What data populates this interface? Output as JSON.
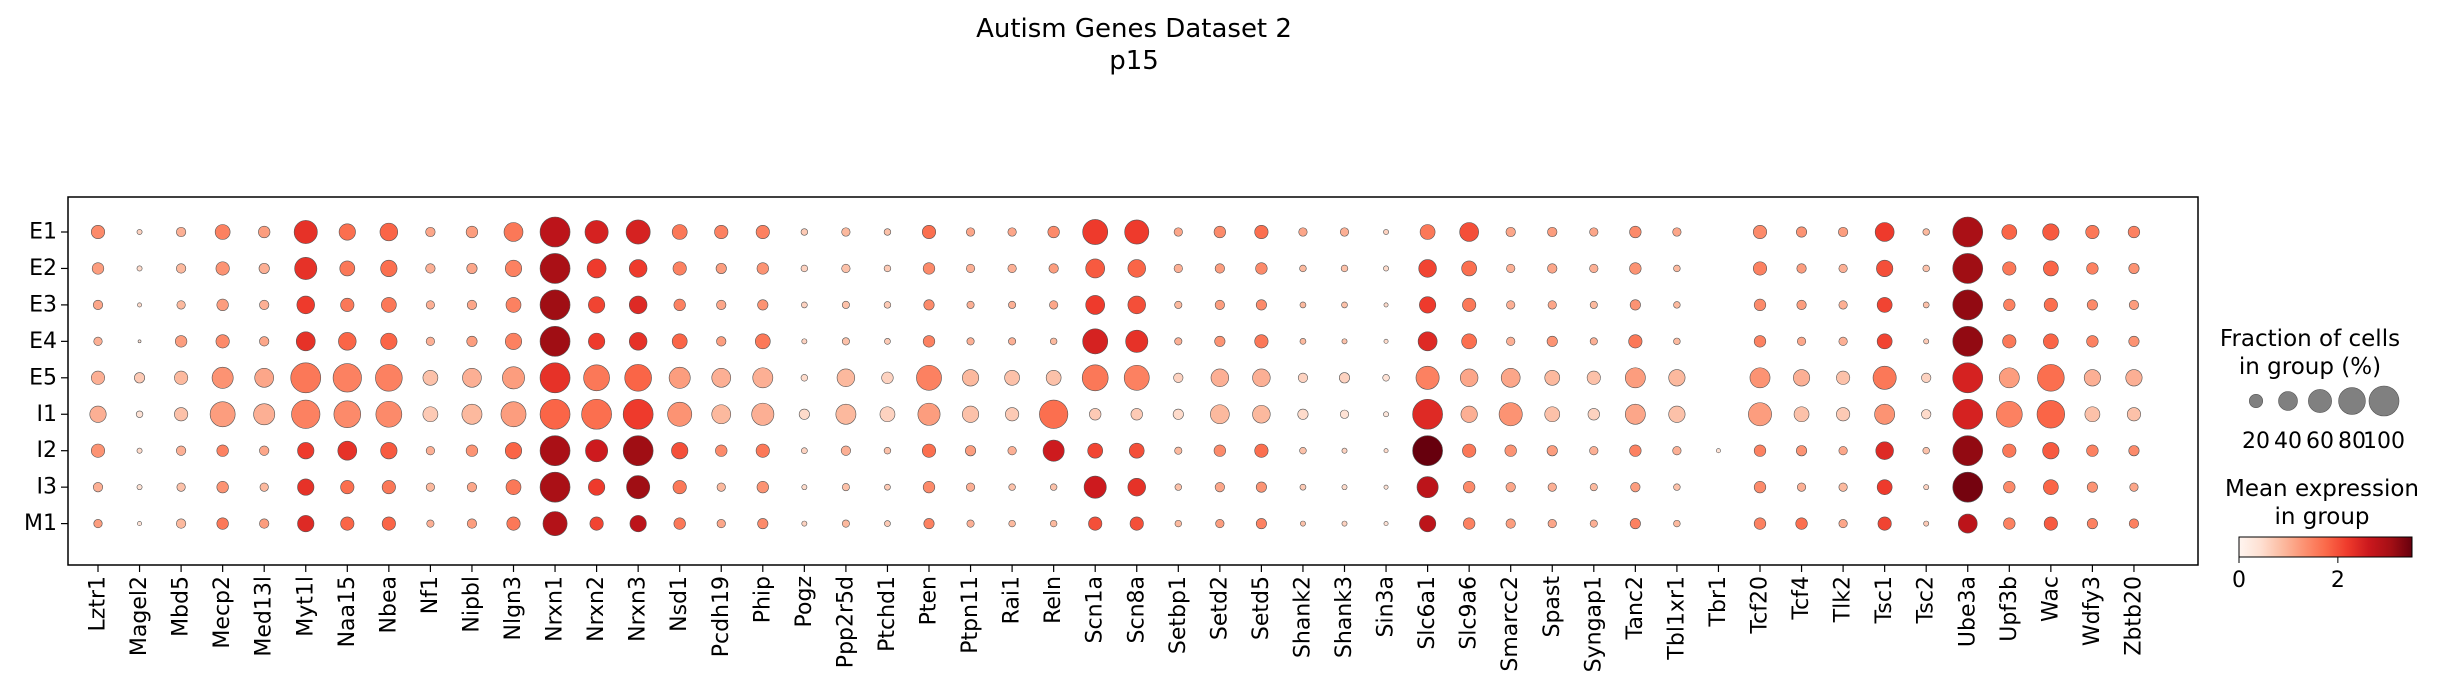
{
  "chart_data": {
    "type": "dotplot",
    "title": "Autism Genes Dataset 2",
    "subtitle": "p15",
    "xlabel": "",
    "ylabel": "",
    "genes": [
      "Lztr1",
      "Magel2",
      "Mbd5",
      "Mecp2",
      "Med13l",
      "Myt1l",
      "Naa15",
      "Nbea",
      "Nf1",
      "Nipbl",
      "Nlgn3",
      "Nrxn1",
      "Nrxn2",
      "Nrxn3",
      "Nsd1",
      "Pcdh19",
      "Phip",
      "Pogz",
      "Ppp2r5d",
      "Ptchd1",
      "Pten",
      "Ptpn11",
      "Rai1",
      "Reln",
      "Scn1a",
      "Scn8a",
      "Setbp1",
      "Setd2",
      "Setd5",
      "Shank2",
      "Shank3",
      "Sin3a",
      "Slc6a1",
      "Slc9a6",
      "Smarcc2",
      "Spast",
      "Syngap1",
      "Tanc2",
      "Tbl1xr1",
      "Tbr1",
      "Tcf20",
      "Tcf4",
      "Tlk2",
      "Tsc1",
      "Tsc2",
      "Ube3a",
      "Upf3b",
      "Wac",
      "Wdfy3",
      "Zbtb20"
    ],
    "groups": [
      "E1",
      "E2",
      "E3",
      "E4",
      "E5",
      "I1",
      "I2",
      "I3",
      "M1"
    ],
    "fraction_pct": [
      [
        20,
        3,
        10,
        25,
        15,
        60,
        30,
        35,
        10,
        15,
        40,
        100,
        60,
        65,
        25,
        20,
        20,
        5,
        8,
        5,
        20,
        8,
        8,
        15,
        70,
        65,
        8,
        15,
        20,
        8,
        8,
        3,
        25,
        40,
        10,
        10,
        8,
        15,
        8,
        0,
        20,
        12,
        10,
        40,
        5,
        100,
        25,
        30,
        20,
        15
      ],
      [
        15,
        3,
        10,
        20,
        12,
        55,
        25,
        30,
        10,
        12,
        30,
        100,
        40,
        35,
        20,
        12,
        15,
        5,
        8,
        5,
        15,
        8,
        8,
        10,
        40,
        35,
        8,
        10,
        15,
        5,
        5,
        3,
        35,
        25,
        8,
        10,
        8,
        15,
        5,
        0,
        20,
        10,
        8,
        30,
        5,
        100,
        20,
        25,
        15,
        12
      ],
      [
        10,
        2,
        8,
        15,
        10,
        35,
        20,
        25,
        8,
        10,
        25,
        100,
        30,
        35,
        15,
        10,
        12,
        4,
        6,
        5,
        12,
        6,
        6,
        8,
        40,
        35,
        6,
        10,
        12,
        4,
        4,
        2,
        30,
        20,
        8,
        8,
        6,
        12,
        5,
        0,
        15,
        10,
        8,
        25,
        4,
        100,
        15,
        20,
        12,
        10
      ],
      [
        8,
        1,
        15,
        20,
        10,
        40,
        35,
        30,
        8,
        12,
        30,
        100,
        30,
        35,
        25,
        10,
        25,
        3,
        6,
        4,
        15,
        6,
        6,
        5,
        70,
        55,
        6,
        12,
        20,
        4,
        3,
        2,
        40,
        25,
        8,
        12,
        6,
        20,
        5,
        0,
        15,
        8,
        8,
        25,
        3,
        100,
        20,
        25,
        15,
        12
      ],
      [
        20,
        12,
        20,
        50,
        40,
        100,
        90,
        80,
        25,
        40,
        55,
        100,
        75,
        80,
        50,
        40,
        45,
        5,
        35,
        15,
        70,
        30,
        25,
        25,
        75,
        70,
        10,
        35,
        35,
        10,
        12,
        5,
        60,
        35,
        40,
        25,
        20,
        45,
        30,
        0,
        45,
        30,
        20,
        60,
        10,
        100,
        45,
        80,
        30,
        30
      ],
      [
        30,
        5,
        20,
        70,
        50,
        90,
        80,
        75,
        25,
        45,
        70,
        100,
        100,
        100,
        65,
        40,
        55,
        12,
        45,
        25,
        55,
        30,
        20,
        90,
        15,
        15,
        12,
        40,
        35,
        12,
        8,
        3,
        100,
        30,
        60,
        25,
        15,
        45,
        30,
        0,
        60,
        25,
        20,
        45,
        10,
        100,
        75,
        85,
        25,
        20
      ],
      [
        20,
        3,
        10,
        15,
        10,
        30,
        40,
        30,
        8,
        15,
        30,
        100,
        55,
        100,
        30,
        15,
        20,
        4,
        10,
        5,
        20,
        12,
        8,
        50,
        25,
        25,
        6,
        15,
        20,
        5,
        3,
        2,
        100,
        20,
        15,
        12,
        8,
        15,
        8,
        2,
        15,
        12,
        8,
        35,
        5,
        100,
        20,
        30,
        15,
        12
      ],
      [
        10,
        3,
        8,
        15,
        8,
        30,
        20,
        20,
        8,
        10,
        25,
        100,
        30,
        60,
        20,
        8,
        15,
        3,
        6,
        4,
        15,
        8,
        5,
        5,
        55,
        35,
        5,
        10,
        12,
        4,
        3,
        2,
        50,
        15,
        10,
        8,
        6,
        10,
        5,
        0,
        15,
        8,
        8,
        25,
        3,
        100,
        15,
        25,
        12,
        8
      ],
      [
        8,
        2,
        10,
        15,
        10,
        30,
        20,
        20,
        6,
        10,
        20,
        65,
        20,
        30,
        15,
        8,
        12,
        3,
        6,
        4,
        12,
        6,
        5,
        5,
        20,
        20,
        5,
        8,
        12,
        3,
        3,
        2,
        30,
        15,
        10,
        8,
        6,
        12,
        5,
        0,
        15,
        15,
        8,
        20,
        3,
        40,
        15,
        20,
        12,
        10
      ]
    ],
    "mean_expression": [
      [
        1.4,
        0.6,
        1.0,
        1.5,
        1.2,
        2.3,
        1.7,
        1.8,
        1.1,
        1.2,
        1.6,
        2.8,
        2.5,
        2.5,
        1.6,
        1.5,
        1.5,
        0.7,
        0.9,
        0.8,
        1.7,
        1.1,
        1.1,
        1.4,
        2.2,
        2.2,
        1.1,
        1.4,
        1.7,
        1.1,
        1.0,
        0.6,
        1.6,
        2.0,
        1.1,
        1.2,
        1.1,
        1.4,
        1.1,
        0,
        1.4,
        1.3,
        1.2,
        2.2,
        0.9,
        3.0,
        1.8,
        1.9,
        1.6,
        1.5
      ],
      [
        1.2,
        0.5,
        0.9,
        1.3,
        1.0,
        2.3,
        1.6,
        1.7,
        1.0,
        1.1,
        1.5,
        3.0,
        2.2,
        2.2,
        1.5,
        1.2,
        1.3,
        0.6,
        0.8,
        0.7,
        1.4,
        1.0,
        1.0,
        1.2,
        1.9,
        1.8,
        1.0,
        1.2,
        1.4,
        0.9,
        0.8,
        0.5,
        2.1,
        1.7,
        1.0,
        1.1,
        1.0,
        1.3,
        0.9,
        0,
        1.5,
        1.2,
        1.0,
        2.0,
        0.8,
        3.1,
        1.6,
        1.8,
        1.5,
        1.3
      ],
      [
        1.1,
        0.5,
        0.9,
        1.2,
        1.0,
        2.2,
        1.6,
        1.6,
        1.0,
        1.1,
        1.5,
        3.1,
        2.1,
        2.4,
        1.5,
        1.1,
        1.3,
        0.6,
        0.8,
        0.7,
        1.4,
        1.0,
        1.0,
        1.1,
        2.2,
        2.0,
        0.9,
        1.2,
        1.4,
        0.9,
        0.8,
        0.5,
        2.2,
        1.6,
        1.0,
        1.1,
        0.9,
        1.3,
        0.9,
        0,
        1.4,
        1.2,
        1.0,
        2.1,
        0.8,
        3.2,
        1.5,
        1.7,
        1.4,
        1.2
      ],
      [
        1.0,
        0.4,
        1.2,
        1.4,
        1.1,
        2.3,
        1.8,
        1.8,
        1.0,
        1.2,
        1.5,
        3.1,
        2.2,
        2.3,
        1.8,
        1.2,
        1.6,
        0.6,
        0.8,
        0.7,
        1.5,
        1.0,
        1.0,
        0.9,
        2.5,
        2.3,
        1.0,
        1.3,
        1.6,
        0.9,
        0.8,
        0.5,
        2.4,
        1.7,
        1.0,
        1.3,
        1.0,
        1.6,
        0.9,
        0,
        1.5,
        1.1,
        1.0,
        2.1,
        0.7,
        3.2,
        1.6,
        1.8,
        1.5,
        1.3
      ],
      [
        1.0,
        0.7,
        0.9,
        1.3,
        1.1,
        1.6,
        1.5,
        1.5,
        0.8,
        1.0,
        1.2,
        2.3,
        1.6,
        1.8,
        1.2,
        1.0,
        1.0,
        0.5,
        0.9,
        0.6,
        1.5,
        0.9,
        0.8,
        0.8,
        1.6,
        1.5,
        0.6,
        1.0,
        1.0,
        0.6,
        0.6,
        0.4,
        1.5,
        1.1,
        1.1,
        0.9,
        0.8,
        1.2,
        0.9,
        0,
        1.3,
        1.0,
        0.8,
        1.6,
        0.6,
        2.5,
        1.2,
        1.7,
        1.0,
        1.0
      ],
      [
        1.0,
        0.4,
        0.8,
        1.2,
        1.0,
        1.5,
        1.4,
        1.4,
        0.7,
        0.9,
        1.2,
        1.8,
        1.7,
        2.2,
        1.3,
        0.9,
        1.0,
        0.5,
        0.9,
        0.6,
        1.2,
        0.8,
        0.7,
        1.7,
        0.7,
        0.7,
        0.5,
        0.9,
        0.9,
        0.5,
        0.4,
        0.3,
        2.4,
        1.0,
        1.3,
        0.8,
        0.6,
        1.1,
        0.8,
        0,
        1.2,
        0.8,
        0.7,
        1.3,
        0.5,
        2.5,
        1.5,
        1.8,
        0.8,
        0.8
      ],
      [
        1.3,
        0.5,
        1.0,
        1.5,
        1.1,
        2.2,
        2.3,
        1.9,
        1.0,
        1.3,
        1.8,
        3.0,
        2.6,
        3.1,
        2.0,
        1.4,
        1.6,
        0.6,
        1.0,
        0.8,
        1.7,
        1.2,
        1.0,
        2.6,
        2.1,
        2.0,
        0.9,
        1.4,
        1.7,
        0.8,
        0.6,
        0.5,
        3.5,
        1.6,
        1.3,
        1.2,
        1.0,
        1.5,
        1.0,
        0.4,
        1.5,
        1.3,
        1.1,
        2.4,
        0.8,
        3.2,
        1.6,
        1.9,
        1.5,
        1.4
      ],
      [
        1.0,
        0.4,
        0.8,
        1.3,
        0.9,
        2.3,
        1.7,
        1.6,
        0.9,
        1.1,
        1.6,
        3.0,
        2.2,
        3.1,
        1.6,
        0.9,
        1.3,
        0.5,
        0.8,
        0.7,
        1.4,
        1.0,
        0.8,
        0.8,
        2.6,
        2.3,
        0.8,
        1.1,
        1.3,
        0.7,
        0.5,
        0.4,
        2.8,
        1.4,
        1.1,
        1.0,
        0.9,
        1.2,
        0.8,
        0,
        1.4,
        1.0,
        0.9,
        2.2,
        0.6,
        3.4,
        1.4,
        1.8,
        1.3,
        1.1
      ],
      [
        1.2,
        0.4,
        0.9,
        1.6,
        1.2,
        2.4,
        1.8,
        1.8,
        1.0,
        1.2,
        1.6,
        2.9,
        2.1,
        2.8,
        1.6,
        1.1,
        1.4,
        0.6,
        0.9,
        0.7,
        1.5,
        1.0,
        0.9,
        0.9,
        2.0,
        2.0,
        0.9,
        1.2,
        1.5,
        0.8,
        0.6,
        0.4,
        2.8,
        1.5,
        1.2,
        1.1,
        1.0,
        1.5,
        0.9,
        0,
        1.5,
        1.7,
        1.1,
        2.1,
        0.7,
        2.8,
        1.5,
        1.9,
        1.5,
        1.5
      ]
    ],
    "size_legend": {
      "title_line1": "Fraction of cells",
      "title_line2": "in group (%)",
      "values": [
        20,
        40,
        60,
        80,
        100
      ],
      "labels": [
        "20",
        "40",
        "60",
        "80",
        "100"
      ]
    },
    "color_legend": {
      "title_line1": "Mean expression",
      "title_line2": "in group",
      "range": [
        0,
        3.5
      ],
      "ticks": [
        0,
        2
      ],
      "tick_labels": [
        "0",
        "2"
      ],
      "colormap": "Reds"
    }
  }
}
